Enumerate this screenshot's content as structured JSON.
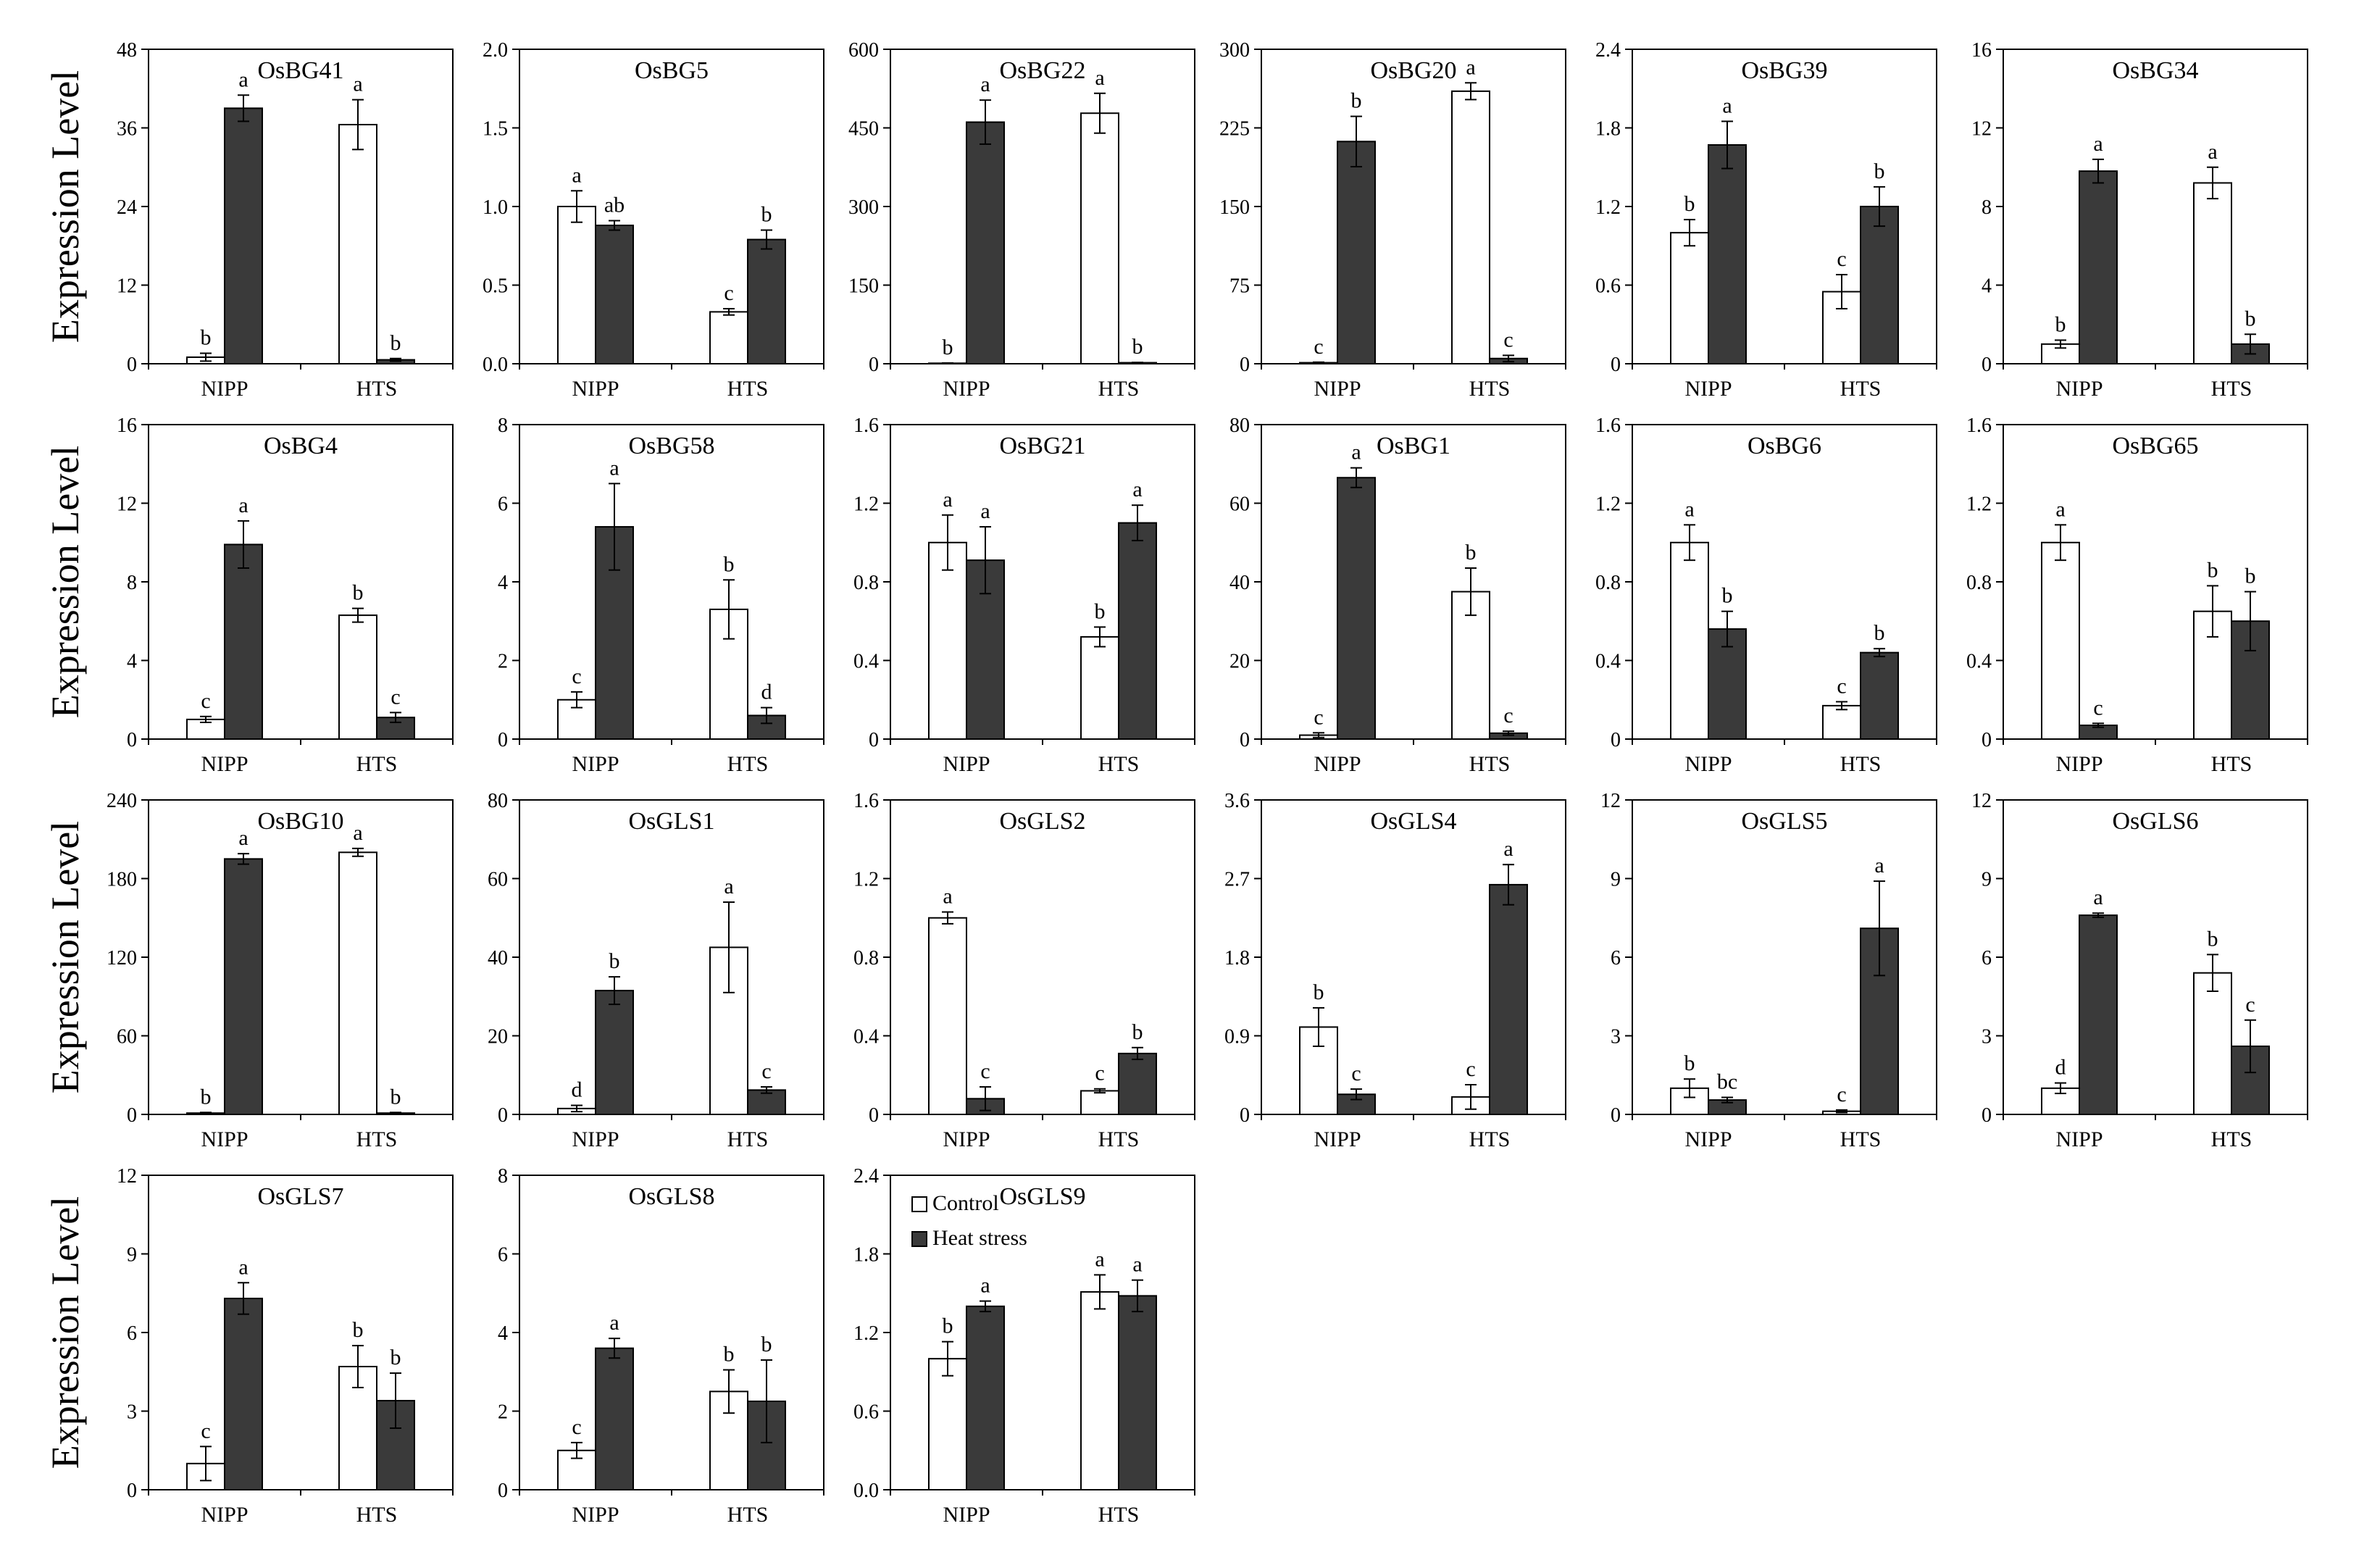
{
  "figure": {
    "y_axis_label": "Expression Level",
    "legend": [
      {
        "label": "Control",
        "color": "#ffffff"
      },
      {
        "label": "Heat stress",
        "color": "#3a3a3a"
      }
    ],
    "colors": {
      "control": "#ffffff",
      "heat": "#3a3a3a",
      "axis": "#000000"
    }
  },
  "chart_data": [
    {
      "type": "bar",
      "title": "OsBG41",
      "categories": [
        "NIPP",
        "HTS"
      ],
      "ylim": [
        0,
        48
      ],
      "yticks": [
        "0",
        "12",
        "24",
        "36",
        "48"
      ],
      "series": [
        {
          "name": "Control",
          "values": [
            1,
            36.5
          ],
          "errors": [
            0.6,
            3.8
          ],
          "labels": [
            "b",
            "a"
          ]
        },
        {
          "name": "Heat stress",
          "values": [
            39,
            0.6
          ],
          "errors": [
            2,
            0.2
          ],
          "labels": [
            "a",
            "b"
          ]
        }
      ]
    },
    {
      "type": "bar",
      "title": "OsBG5",
      "categories": [
        "NIPP",
        "HTS"
      ],
      "ylim": [
        0,
        2
      ],
      "yticks": [
        "0.0",
        "0.5",
        "1.0",
        "1.5",
        "2.0"
      ],
      "series": [
        {
          "name": "Control",
          "values": [
            1,
            0.33
          ],
          "errors": [
            0.1,
            0.02
          ],
          "labels": [
            "a",
            "c"
          ]
        },
        {
          "name": "Heat stress",
          "values": [
            0.88,
            0.79
          ],
          "errors": [
            0.03,
            0.06
          ],
          "labels": [
            "ab",
            "b"
          ]
        }
      ]
    },
    {
      "type": "bar",
      "title": "OsBG22",
      "categories": [
        "NIPP",
        "HTS"
      ],
      "ylim": [
        0,
        600
      ],
      "yticks": [
        "0",
        "150",
        "300",
        "450",
        "600"
      ],
      "series": [
        {
          "name": "Control",
          "values": [
            1,
            478
          ],
          "errors": [
            0.5,
            38
          ],
          "labels": [
            "b",
            "a"
          ]
        },
        {
          "name": "Heat stress",
          "values": [
            461,
            2
          ],
          "errors": [
            42,
            0.5
          ],
          "labels": [
            "a",
            "b"
          ]
        }
      ]
    },
    {
      "type": "bar",
      "title": "OsBG20",
      "categories": [
        "NIPP",
        "HTS"
      ],
      "ylim": [
        0,
        300
      ],
      "yticks": [
        "0",
        "75",
        "150",
        "225",
        "300"
      ],
      "series": [
        {
          "name": "Control",
          "values": [
            1,
            260
          ],
          "errors": [
            0.5,
            8
          ],
          "labels": [
            "c",
            "a"
          ]
        },
        {
          "name": "Heat stress",
          "values": [
            212,
            5
          ],
          "errors": [
            24,
            3
          ],
          "labels": [
            "b",
            "c"
          ]
        }
      ]
    },
    {
      "type": "bar",
      "title": "OsBG39",
      "categories": [
        "NIPP",
        "HTS"
      ],
      "ylim": [
        0,
        2.4
      ],
      "yticks": [
        "0",
        "0.6",
        "1.2",
        "1.8",
        "2.4"
      ],
      "series": [
        {
          "name": "Control",
          "values": [
            1,
            0.55
          ],
          "errors": [
            0.1,
            0.13
          ],
          "labels": [
            "b",
            "c"
          ]
        },
        {
          "name": "Heat stress",
          "values": [
            1.67,
            1.2
          ],
          "errors": [
            0.18,
            0.15
          ],
          "labels": [
            "a",
            "b"
          ]
        }
      ]
    },
    {
      "type": "bar",
      "title": "OsBG34",
      "categories": [
        "NIPP",
        "HTS"
      ],
      "ylim": [
        0,
        16
      ],
      "yticks": [
        "0",
        "4",
        "8",
        "12",
        "16"
      ],
      "series": [
        {
          "name": "Control",
          "values": [
            1,
            9.2
          ],
          "errors": [
            0.2,
            0.8
          ],
          "labels": [
            "b",
            "a"
          ]
        },
        {
          "name": "Heat stress",
          "values": [
            9.8,
            1
          ],
          "errors": [
            0.6,
            0.5
          ],
          "labels": [
            "a",
            "b"
          ]
        }
      ]
    },
    {
      "type": "bar",
      "title": "OsBG4",
      "categories": [
        "NIPP",
        "HTS"
      ],
      "ylim": [
        0,
        16
      ],
      "yticks": [
        "0",
        "4",
        "8",
        "12",
        "16"
      ],
      "series": [
        {
          "name": "Control",
          "values": [
            1,
            6.3
          ],
          "errors": [
            0.15,
            0.35
          ],
          "labels": [
            "c",
            "b"
          ]
        },
        {
          "name": "Heat stress",
          "values": [
            9.9,
            1.1
          ],
          "errors": [
            1.2,
            0.25
          ],
          "labels": [
            "a",
            "c"
          ]
        }
      ]
    },
    {
      "type": "bar",
      "title": "OsBG58",
      "categories": [
        "NIPP",
        "HTS"
      ],
      "ylim": [
        0,
        8
      ],
      "yticks": [
        "0",
        "2",
        "4",
        "6",
        "8"
      ],
      "series": [
        {
          "name": "Control",
          "values": [
            1,
            3.3
          ],
          "errors": [
            0.2,
            0.75
          ],
          "labels": [
            "c",
            "b"
          ]
        },
        {
          "name": "Heat stress",
          "values": [
            5.4,
            0.6
          ],
          "errors": [
            1.1,
            0.2
          ],
          "labels": [
            "a",
            "d"
          ]
        }
      ]
    },
    {
      "type": "bar",
      "title": "OsBG21",
      "categories": [
        "NIPP",
        "HTS"
      ],
      "ylim": [
        0,
        1.6
      ],
      "yticks": [
        "0",
        "0.4",
        "0.8",
        "1.2",
        "1.6"
      ],
      "series": [
        {
          "name": "Control",
          "values": [
            1,
            0.52
          ],
          "errors": [
            0.14,
            0.05
          ],
          "labels": [
            "a",
            "b"
          ]
        },
        {
          "name": "Heat stress",
          "values": [
            0.91,
            1.1
          ],
          "errors": [
            0.17,
            0.09
          ],
          "labels": [
            "a",
            "a"
          ]
        }
      ]
    },
    {
      "type": "bar",
      "title": "OsBG1",
      "categories": [
        "NIPP",
        "HTS"
      ],
      "ylim": [
        0,
        80
      ],
      "yticks": [
        "0",
        "20",
        "40",
        "60",
        "80"
      ],
      "series": [
        {
          "name": "Control",
          "values": [
            1,
            37.5
          ],
          "errors": [
            0.6,
            6
          ],
          "labels": [
            "c",
            "b"
          ]
        },
        {
          "name": "Heat stress",
          "values": [
            66.5,
            1.5
          ],
          "errors": [
            2.5,
            0.5
          ],
          "labels": [
            "a",
            "c"
          ]
        }
      ]
    },
    {
      "type": "bar",
      "title": "OsBG6",
      "categories": [
        "NIPP",
        "HTS"
      ],
      "ylim": [
        0,
        1.6
      ],
      "yticks": [
        "0",
        "0.4",
        "0.8",
        "1.2",
        "1.6"
      ],
      "series": [
        {
          "name": "Control",
          "values": [
            1,
            0.17
          ],
          "errors": [
            0.09,
            0.02
          ],
          "labels": [
            "a",
            "c"
          ]
        },
        {
          "name": "Heat stress",
          "values": [
            0.56,
            0.44
          ],
          "errors": [
            0.09,
            0.02
          ],
          "labels": [
            "b",
            "b"
          ]
        }
      ]
    },
    {
      "type": "bar",
      "title": "OsBG65",
      "categories": [
        "NIPP",
        "HTS"
      ],
      "ylim": [
        0,
        1.6
      ],
      "yticks": [
        "0",
        "0.4",
        "0.8",
        "1.2",
        "1.6"
      ],
      "series": [
        {
          "name": "Control",
          "values": [
            1,
            0.65
          ],
          "errors": [
            0.09,
            0.13
          ],
          "labels": [
            "a",
            "b"
          ]
        },
        {
          "name": "Heat stress",
          "values": [
            0.07,
            0.6
          ],
          "errors": [
            0.01,
            0.15
          ],
          "labels": [
            "c",
            "b"
          ]
        }
      ]
    },
    {
      "type": "bar",
      "title": "OsBG10",
      "categories": [
        "NIPP",
        "HTS"
      ],
      "ylim": [
        0,
        240
      ],
      "yticks": [
        "0",
        "60",
        "120",
        "180",
        "240"
      ],
      "series": [
        {
          "name": "Control",
          "values": [
            1,
            200
          ],
          "errors": [
            0.5,
            3
          ],
          "labels": [
            "b",
            "a"
          ]
        },
        {
          "name": "Heat stress",
          "values": [
            195,
            1
          ],
          "errors": [
            4,
            0.5
          ],
          "labels": [
            "a",
            "b"
          ]
        }
      ]
    },
    {
      "type": "bar",
      "title": "OsGLS1",
      "categories": [
        "NIPP",
        "HTS"
      ],
      "ylim": [
        0,
        80
      ],
      "yticks": [
        "0",
        "20",
        "40",
        "60",
        "80"
      ],
      "series": [
        {
          "name": "Control",
          "values": [
            1.5,
            42.5
          ],
          "errors": [
            0.8,
            11.5
          ],
          "labels": [
            "d",
            "a"
          ]
        },
        {
          "name": "Heat stress",
          "values": [
            31.5,
            6.2
          ],
          "errors": [
            3.5,
            0.8
          ],
          "labels": [
            "b",
            "c"
          ]
        }
      ]
    },
    {
      "type": "bar",
      "title": "OsGLS2",
      "categories": [
        "NIPP",
        "HTS"
      ],
      "ylim": [
        0,
        1.6
      ],
      "yticks": [
        "0",
        "0.4",
        "0.8",
        "1.2",
        "1.6"
      ],
      "series": [
        {
          "name": "Control",
          "values": [
            1,
            0.12
          ],
          "errors": [
            0.03,
            0.01
          ],
          "labels": [
            "a",
            "c"
          ]
        },
        {
          "name": "Heat stress",
          "values": [
            0.08,
            0.31
          ],
          "errors": [
            0.06,
            0.03
          ],
          "labels": [
            "c",
            "b"
          ]
        }
      ]
    },
    {
      "type": "bar",
      "title": "OsGLS4",
      "categories": [
        "NIPP",
        "HTS"
      ],
      "ylim": [
        0,
        3.6
      ],
      "yticks": [
        "0",
        "0.9",
        "1.8",
        "2.7",
        "3.6"
      ],
      "series": [
        {
          "name": "Control",
          "values": [
            1,
            0.2
          ],
          "errors": [
            0.22,
            0.14
          ],
          "labels": [
            "b",
            "c"
          ]
        },
        {
          "name": "Heat stress",
          "values": [
            0.23,
            2.63
          ],
          "errors": [
            0.06,
            0.23
          ],
          "labels": [
            "c",
            "a"
          ]
        }
      ]
    },
    {
      "type": "bar",
      "title": "OsGLS5",
      "categories": [
        "NIPP",
        "HTS"
      ],
      "ylim": [
        0,
        12
      ],
      "yticks": [
        "0",
        "3",
        "6",
        "9",
        "12"
      ],
      "series": [
        {
          "name": "Control",
          "values": [
            1,
            0.12
          ],
          "errors": [
            0.35,
            0.05
          ],
          "labels": [
            "b",
            "c"
          ]
        },
        {
          "name": "Heat stress",
          "values": [
            0.55,
            7.1
          ],
          "errors": [
            0.1,
            1.8
          ],
          "labels": [
            "bc",
            "a"
          ]
        }
      ]
    },
    {
      "type": "bar",
      "title": "OsGLS6",
      "categories": [
        "NIPP",
        "HTS"
      ],
      "ylim": [
        0,
        12
      ],
      "yticks": [
        "0",
        "3",
        "6",
        "9",
        "12"
      ],
      "series": [
        {
          "name": "Control",
          "values": [
            1,
            5.4
          ],
          "errors": [
            0.2,
            0.7
          ],
          "labels": [
            "d",
            "b"
          ]
        },
        {
          "name": "Heat stress",
          "values": [
            7.6,
            2.6
          ],
          "errors": [
            0.08,
            1
          ],
          "labels": [
            "a",
            "c"
          ]
        }
      ]
    },
    {
      "type": "bar",
      "title": "OsGLS7",
      "categories": [
        "NIPP",
        "HTS"
      ],
      "ylim": [
        0,
        12
      ],
      "yticks": [
        "0",
        "3",
        "6",
        "9",
        "12"
      ],
      "series": [
        {
          "name": "Control",
          "values": [
            1,
            4.7
          ],
          "errors": [
            0.65,
            0.8
          ],
          "labels": [
            "c",
            "b"
          ]
        },
        {
          "name": "Heat stress",
          "values": [
            7.3,
            3.4
          ],
          "errors": [
            0.6,
            1.05
          ],
          "labels": [
            "a",
            "b"
          ]
        }
      ]
    },
    {
      "type": "bar",
      "title": "OsGLS8",
      "categories": [
        "NIPP",
        "HTS"
      ],
      "ylim": [
        0,
        8
      ],
      "yticks": [
        "0",
        "2",
        "4",
        "6",
        "8"
      ],
      "series": [
        {
          "name": "Control",
          "values": [
            1,
            2.5
          ],
          "errors": [
            0.2,
            0.55
          ],
          "labels": [
            "c",
            "b"
          ]
        },
        {
          "name": "Heat stress",
          "values": [
            3.6,
            2.25
          ],
          "errors": [
            0.25,
            1.05
          ],
          "labels": [
            "a",
            "b"
          ]
        }
      ]
    },
    {
      "type": "bar",
      "title": "OsGLS9",
      "categories": [
        "NIPP",
        "HTS"
      ],
      "ylim": [
        0,
        2.4
      ],
      "yticks": [
        "0.0",
        "0.6",
        "1.2",
        "1.8",
        "2.4"
      ],
      "series": [
        {
          "name": "Control",
          "values": [
            1,
            1.51
          ],
          "errors": [
            0.13,
            0.13
          ],
          "labels": [
            "b",
            "a"
          ]
        },
        {
          "name": "Heat stress",
          "values": [
            1.4,
            1.48
          ],
          "errors": [
            0.04,
            0.12
          ],
          "labels": [
            "a",
            "a"
          ]
        }
      ]
    }
  ]
}
